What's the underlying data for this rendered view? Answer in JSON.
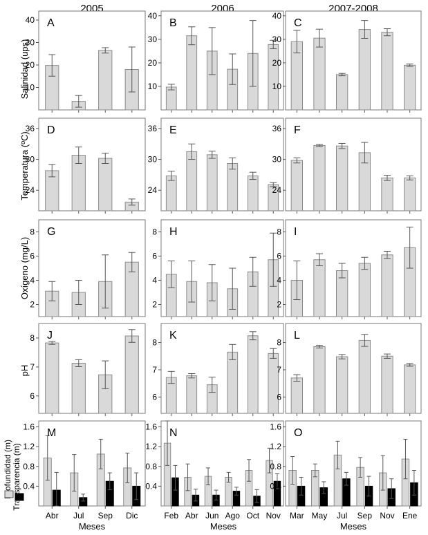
{
  "column_titles": [
    "2005",
    "2006",
    "2007-2008"
  ],
  "row_labels": [
    "Salinidad (ups)",
    "Temperatura (ºC)",
    "Oxígeno (mg/L)",
    "pH",
    ""
  ],
  "x_axis_label": "Meses",
  "legend": {
    "items": [
      {
        "label": "Profundidad (m)",
        "color": "#d9d9d9"
      },
      {
        "label": "Transparencia (m)",
        "color": "#000000"
      }
    ]
  },
  "colors": {
    "bar_fill": "#d9d9d9",
    "bar_stroke": "#8c8c8c",
    "dark_bar": "#000000",
    "frame": "#777777"
  },
  "chart_data": [
    {
      "panel": "A",
      "type": "bar",
      "column": 0,
      "row": 0,
      "ylim": [
        0,
        44
      ],
      "yticks": [
        10,
        20,
        30,
        40
      ],
      "categories": [
        "",
        "",
        "",
        ""
      ],
      "values": [
        19.8,
        3.8,
        26.5,
        18
      ],
      "errors": [
        4.8,
        2.6,
        1.2,
        10
      ]
    },
    {
      "panel": "B",
      "type": "bar",
      "column": 1,
      "row": 0,
      "ylim": [
        0,
        42
      ],
      "yticks": [
        10,
        20,
        30,
        40
      ],
      "categories": [
        "",
        "",
        "",
        "",
        "",
        ""
      ],
      "values": [
        9.7,
        31.5,
        25,
        17.3,
        24,
        27.8
      ],
      "errors": [
        1.2,
        3.8,
        10,
        6.5,
        14,
        1.8
      ]
    },
    {
      "panel": "C",
      "type": "bar",
      "column": 2,
      "row": 0,
      "ylim": [
        0,
        42
      ],
      "yticks": [
        10,
        20,
        30,
        40
      ],
      "categories": [
        "",
        "",
        "",
        "",
        "",
        ""
      ],
      "values": [
        29,
        30.5,
        15,
        34.2,
        33,
        19
      ],
      "errors": [
        4.8,
        3.8,
        0.5,
        3.8,
        1.5,
        0.5
      ]
    },
    {
      "panel": "D",
      "type": "bar",
      "column": 0,
      "row": 1,
      "ylim": [
        20,
        38
      ],
      "yticks": [
        24,
        30,
        36
      ],
      "categories": [
        "",
        "",
        "",
        ""
      ],
      "values": [
        27.8,
        30.8,
        30.2,
        21.7
      ],
      "errors": [
        1.2,
        1.6,
        1.0,
        0.6
      ]
    },
    {
      "panel": "E",
      "type": "bar",
      "column": 1,
      "row": 1,
      "ylim": [
        20,
        38
      ],
      "yticks": [
        24,
        30,
        36
      ],
      "categories": [
        "",
        "",
        "",
        "",
        "",
        ""
      ],
      "values": [
        26.8,
        31.5,
        30.9,
        29.2,
        26.8,
        25.1
      ],
      "errors": [
        0.9,
        1.5,
        0.7,
        1.1,
        0.7,
        0.4
      ]
    },
    {
      "panel": "F",
      "type": "bar",
      "column": 2,
      "row": 1,
      "ylim": [
        20,
        38
      ],
      "yticks": [
        24,
        30,
        36
      ],
      "categories": [
        "",
        "",
        "",
        "",
        "",
        ""
      ],
      "values": [
        29.8,
        32.7,
        32.6,
        31.3,
        26.4,
        26.4
      ],
      "errors": [
        0.5,
        0.2,
        0.5,
        2.0,
        0.5,
        0.4
      ]
    },
    {
      "panel": "G",
      "type": "bar",
      "column": 0,
      "row": 2,
      "ylim": [
        1,
        9
      ],
      "yticks": [
        2,
        4,
        6,
        8
      ],
      "categories": [
        "",
        "",
        "",
        ""
      ],
      "values": [
        3.1,
        3.0,
        3.9,
        5.5
      ],
      "errors": [
        0.8,
        1.0,
        2.2,
        0.8
      ]
    },
    {
      "panel": "H",
      "type": "bar",
      "column": 1,
      "row": 2,
      "ylim": [
        1,
        9
      ],
      "yticks": [
        2,
        4,
        6,
        8
      ],
      "categories": [
        "",
        "",
        "",
        "",
        "",
        ""
      ],
      "values": [
        4.5,
        3.9,
        3.8,
        3.3,
        4.7,
        5.7
      ],
      "errors": [
        1.1,
        1.7,
        1.5,
        1.7,
        1.2,
        2.2
      ]
    },
    {
      "panel": "I",
      "type": "bar",
      "column": 2,
      "row": 2,
      "ylim": [
        1,
        9
      ],
      "yticks": [
        2,
        4,
        6,
        8
      ],
      "categories": [
        "",
        "",
        "",
        "",
        "",
        ""
      ],
      "values": [
        4.0,
        5.7,
        4.8,
        5.4,
        6.1,
        6.7
      ],
      "errors": [
        1.6,
        0.5,
        0.6,
        0.5,
        0.3,
        1.7
      ]
    },
    {
      "panel": "J",
      "type": "bar",
      "column": 0,
      "row": 3,
      "ylim": [
        5.4,
        8.5
      ],
      "yticks": [
        6,
        7,
        8
      ],
      "categories": [
        "",
        "",
        "",
        ""
      ],
      "values": [
        7.83,
        7.13,
        6.73,
        8.07
      ],
      "errors": [
        0.05,
        0.12,
        0.48,
        0.22
      ]
    },
    {
      "panel": "K",
      "type": "bar",
      "column": 1,
      "row": 3,
      "ylim": [
        5.4,
        8.7
      ],
      "yticks": [
        6,
        7,
        8
      ],
      "categories": [
        "",
        "",
        "",
        "",
        "",
        ""
      ],
      "values": [
        6.72,
        6.78,
        6.45,
        7.65,
        8.25,
        7.6
      ],
      "errors": [
        0.22,
        0.08,
        0.28,
        0.28,
        0.15,
        0.18
      ]
    },
    {
      "panel": "L",
      "type": "bar",
      "column": 2,
      "row": 3,
      "ylim": [
        5.4,
        8.7
      ],
      "yticks": [
        6,
        7,
        8
      ],
      "categories": [
        "",
        "",
        "",
        "",
        "",
        ""
      ],
      "values": [
        6.7,
        7.85,
        7.48,
        8.08,
        7.5,
        7.18
      ],
      "errors": [
        0.12,
        0.05,
        0.08,
        0.22,
        0.08,
        0.05
      ]
    },
    {
      "panel": "M",
      "type": "bar",
      "column": 0,
      "row": 4,
      "ylim": [
        0,
        1.72
      ],
      "yticks": [
        0.4,
        0.8,
        1.2,
        1.6
      ],
      "categories": [
        "Abr",
        "Jul",
        "Sep",
        "Dic"
      ],
      "series": [
        {
          "name": "Profundidad (m)",
          "values": [
            0.97,
            0.67,
            1.05,
            0.77
          ],
          "errors": [
            0.45,
            0.37,
            0.3,
            0.3
          ]
        },
        {
          "name": "Transparencia (m)",
          "values": [
            0.32,
            0.17,
            0.5,
            0.4
          ],
          "errors": [
            0.36,
            0.07,
            0.17,
            0.27
          ]
        }
      ]
    },
    {
      "panel": "N",
      "type": "bar",
      "column": 1,
      "row": 4,
      "ylim": [
        0,
        1.72
      ],
      "yticks": [
        0.4,
        0.8,
        1.2,
        1.6
      ],
      "categories": [
        "Feb",
        "Abr",
        "Jun",
        "Ago",
        "Oct",
        "Nov"
      ],
      "series": [
        {
          "name": "Profundidad (m)",
          "values": [
            1.27,
            0.58,
            0.6,
            0.58,
            0.72,
            0.92
          ],
          "errors": [
            0.45,
            0.27,
            0.17,
            0.1,
            0.22,
            0.25
          ]
        },
        {
          "name": "Transparencia (m)",
          "values": [
            0.57,
            0.22,
            0.22,
            0.3,
            0.2,
            0.5
          ],
          "errors": [
            0.25,
            0.12,
            0.1,
            0.08,
            0.13,
            0.15
          ]
        }
      ]
    },
    {
      "panel": "O",
      "type": "bar",
      "column": 2,
      "row": 4,
      "ylim": [
        0,
        1.72
      ],
      "yticks": [
        0.4,
        0.8,
        1.2,
        1.6
      ],
      "categories": [
        "Mar",
        "May",
        "Jul",
        "Sep",
        "Nov",
        "Ene"
      ],
      "series": [
        {
          "name": "Profundidad (m)",
          "values": [
            0.72,
            0.72,
            1.03,
            0.78,
            0.67,
            0.95
          ],
          "errors": [
            0.28,
            0.13,
            0.28,
            0.2,
            0.35,
            0.4
          ]
        },
        {
          "name": "Transparencia (m)",
          "values": [
            0.4,
            0.37,
            0.55,
            0.4,
            0.35,
            0.47
          ],
          "errors": [
            0.18,
            0.12,
            0.13,
            0.2,
            0.2,
            0.25
          ]
        }
      ]
    }
  ]
}
